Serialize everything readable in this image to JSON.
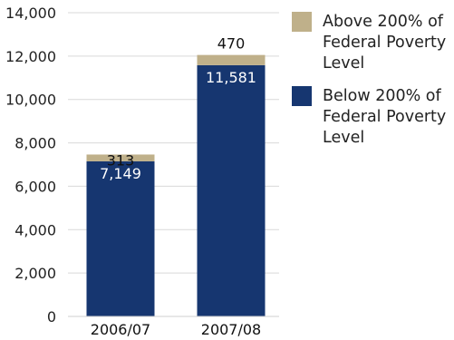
{
  "chart_data": {
    "type": "bar",
    "stacked": true,
    "categories": [
      "2006/07",
      "2007/08"
    ],
    "series": [
      {
        "name": "Below 200% of Federal Poverty Level",
        "values": [
          7149,
          11581
        ],
        "color": "#163670",
        "label_color": "#ffffff"
      },
      {
        "name": "Above 200% of Federal Poverty Level",
        "values": [
          313,
          470
        ],
        "color": "#bfb08a",
        "label_color": "#111111"
      }
    ],
    "data_labels": {
      "below": [
        "7,149",
        "11,581"
      ],
      "above": [
        "313",
        "470"
      ]
    },
    "y_ticks": [
      0,
      2000,
      4000,
      6000,
      8000,
      10000,
      12000,
      14000
    ],
    "y_tick_labels": [
      "0",
      "2,000",
      "4,000",
      "6,000",
      "8,000",
      "10,000",
      "12,000",
      "14,000"
    ],
    "ylim": [
      0,
      14000
    ],
    "grid": true,
    "legend": {
      "placement": "right",
      "entries": [
        {
          "lines": [
            "Above 200% of",
            "Federal Poverty",
            "Level"
          ],
          "color": "#bfb08a"
        },
        {
          "lines": [
            "Below 200% of",
            "Federal Poverty",
            "Level"
          ],
          "color": "#163670"
        }
      ]
    },
    "title": "",
    "xlabel": "",
    "ylabel": ""
  }
}
